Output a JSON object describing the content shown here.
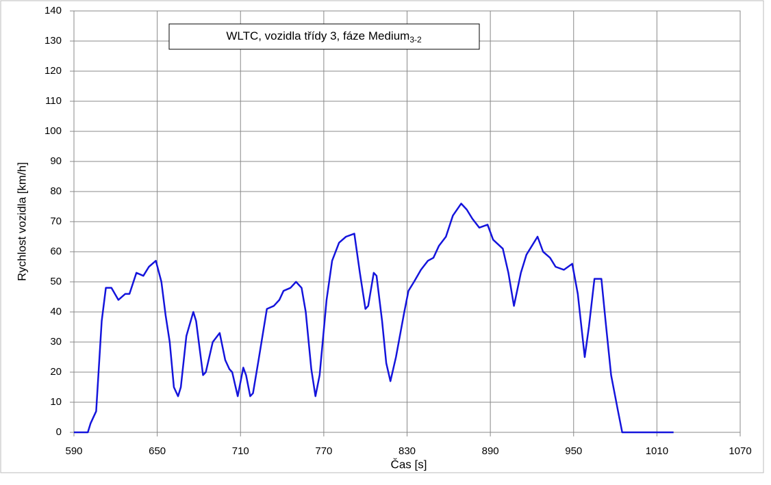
{
  "chart_data": {
    "type": "line",
    "title": "WLTC, vozidla třídy 3, fáze Medium",
    "title_subscript": "3-2",
    "x_label": "Čas [s]",
    "y_label": "Rychlost vozidla [km/h]",
    "xlim": [
      590,
      1070
    ],
    "xticks": [
      590,
      650,
      710,
      770,
      830,
      890,
      950,
      1010,
      1070
    ],
    "ylim": [
      0,
      140
    ],
    "yticks": [
      0,
      10,
      20,
      30,
      40,
      50,
      60,
      70,
      80,
      90,
      100,
      110,
      120,
      130,
      140
    ],
    "grid": true,
    "series": [
      {
        "name": "Rychlost",
        "color": "#1414dc",
        "x": [
          590,
          600,
          602,
          606,
          610,
          613,
          617,
          622,
          627,
          630,
          635,
          640,
          644,
          649,
          653,
          656,
          659,
          662,
          665,
          667,
          671,
          676,
          678,
          683,
          685,
          690,
          695,
          699,
          702,
          704,
          708,
          712,
          714,
          717,
          719,
          723,
          729,
          734,
          738,
          741,
          746,
          750,
          754,
          757,
          761,
          764,
          767,
          772,
          776,
          781,
          786,
          792,
          796,
          800,
          802,
          806,
          808,
          812,
          815,
          818,
          822,
          828,
          831,
          835,
          840,
          845,
          849,
          853,
          858,
          863,
          869,
          873,
          877,
          882,
          888,
          892,
          899,
          903,
          907,
          912,
          916,
          920,
          924,
          928,
          933,
          937,
          943,
          949,
          953,
          958,
          961,
          965,
          970,
          973,
          977,
          982,
          985,
          1022
        ],
        "values": [
          0,
          0,
          3,
          7,
          37,
          48,
          48,
          44,
          46,
          46,
          53,
          52,
          55,
          57,
          50,
          39,
          30,
          15,
          12,
          15,
          32,
          40,
          37,
          19,
          20,
          30,
          33,
          24,
          21,
          20,
          12,
          21.5,
          19,
          12,
          13,
          24,
          41,
          42,
          44,
          47,
          48,
          50,
          48,
          40,
          21,
          12,
          19,
          44,
          57,
          63,
          65,
          66,
          53,
          41,
          42,
          53,
          52,
          37,
          23,
          17,
          25,
          40,
          47,
          50,
          54,
          57,
          58,
          62,
          65,
          72,
          76,
          74,
          71,
          68,
          69,
          64,
          61,
          53,
          42,
          53,
          59,
          62,
          65,
          60,
          58,
          55,
          54,
          56,
          46,
          25,
          35,
          51,
          51,
          37,
          19,
          7,
          0,
          0
        ]
      }
    ]
  }
}
